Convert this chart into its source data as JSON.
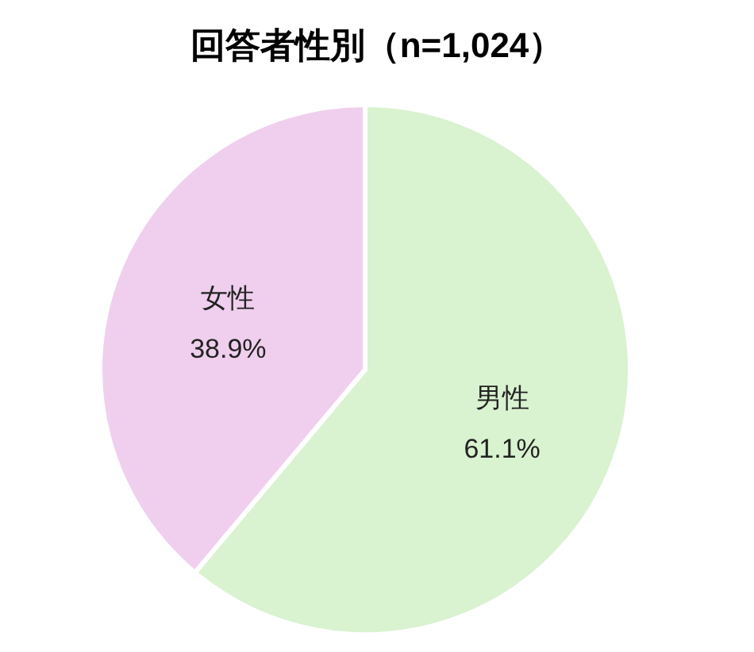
{
  "chart_data": {
    "type": "pie",
    "title": "回答者性別（n=1,024）",
    "categories": [
      "男性",
      "女性"
    ],
    "values": [
      61.1,
      38.9
    ],
    "value_labels": [
      "61.1%",
      "38.9%"
    ],
    "colors": [
      "#d9f2d0",
      "#f0cfee"
    ]
  }
}
